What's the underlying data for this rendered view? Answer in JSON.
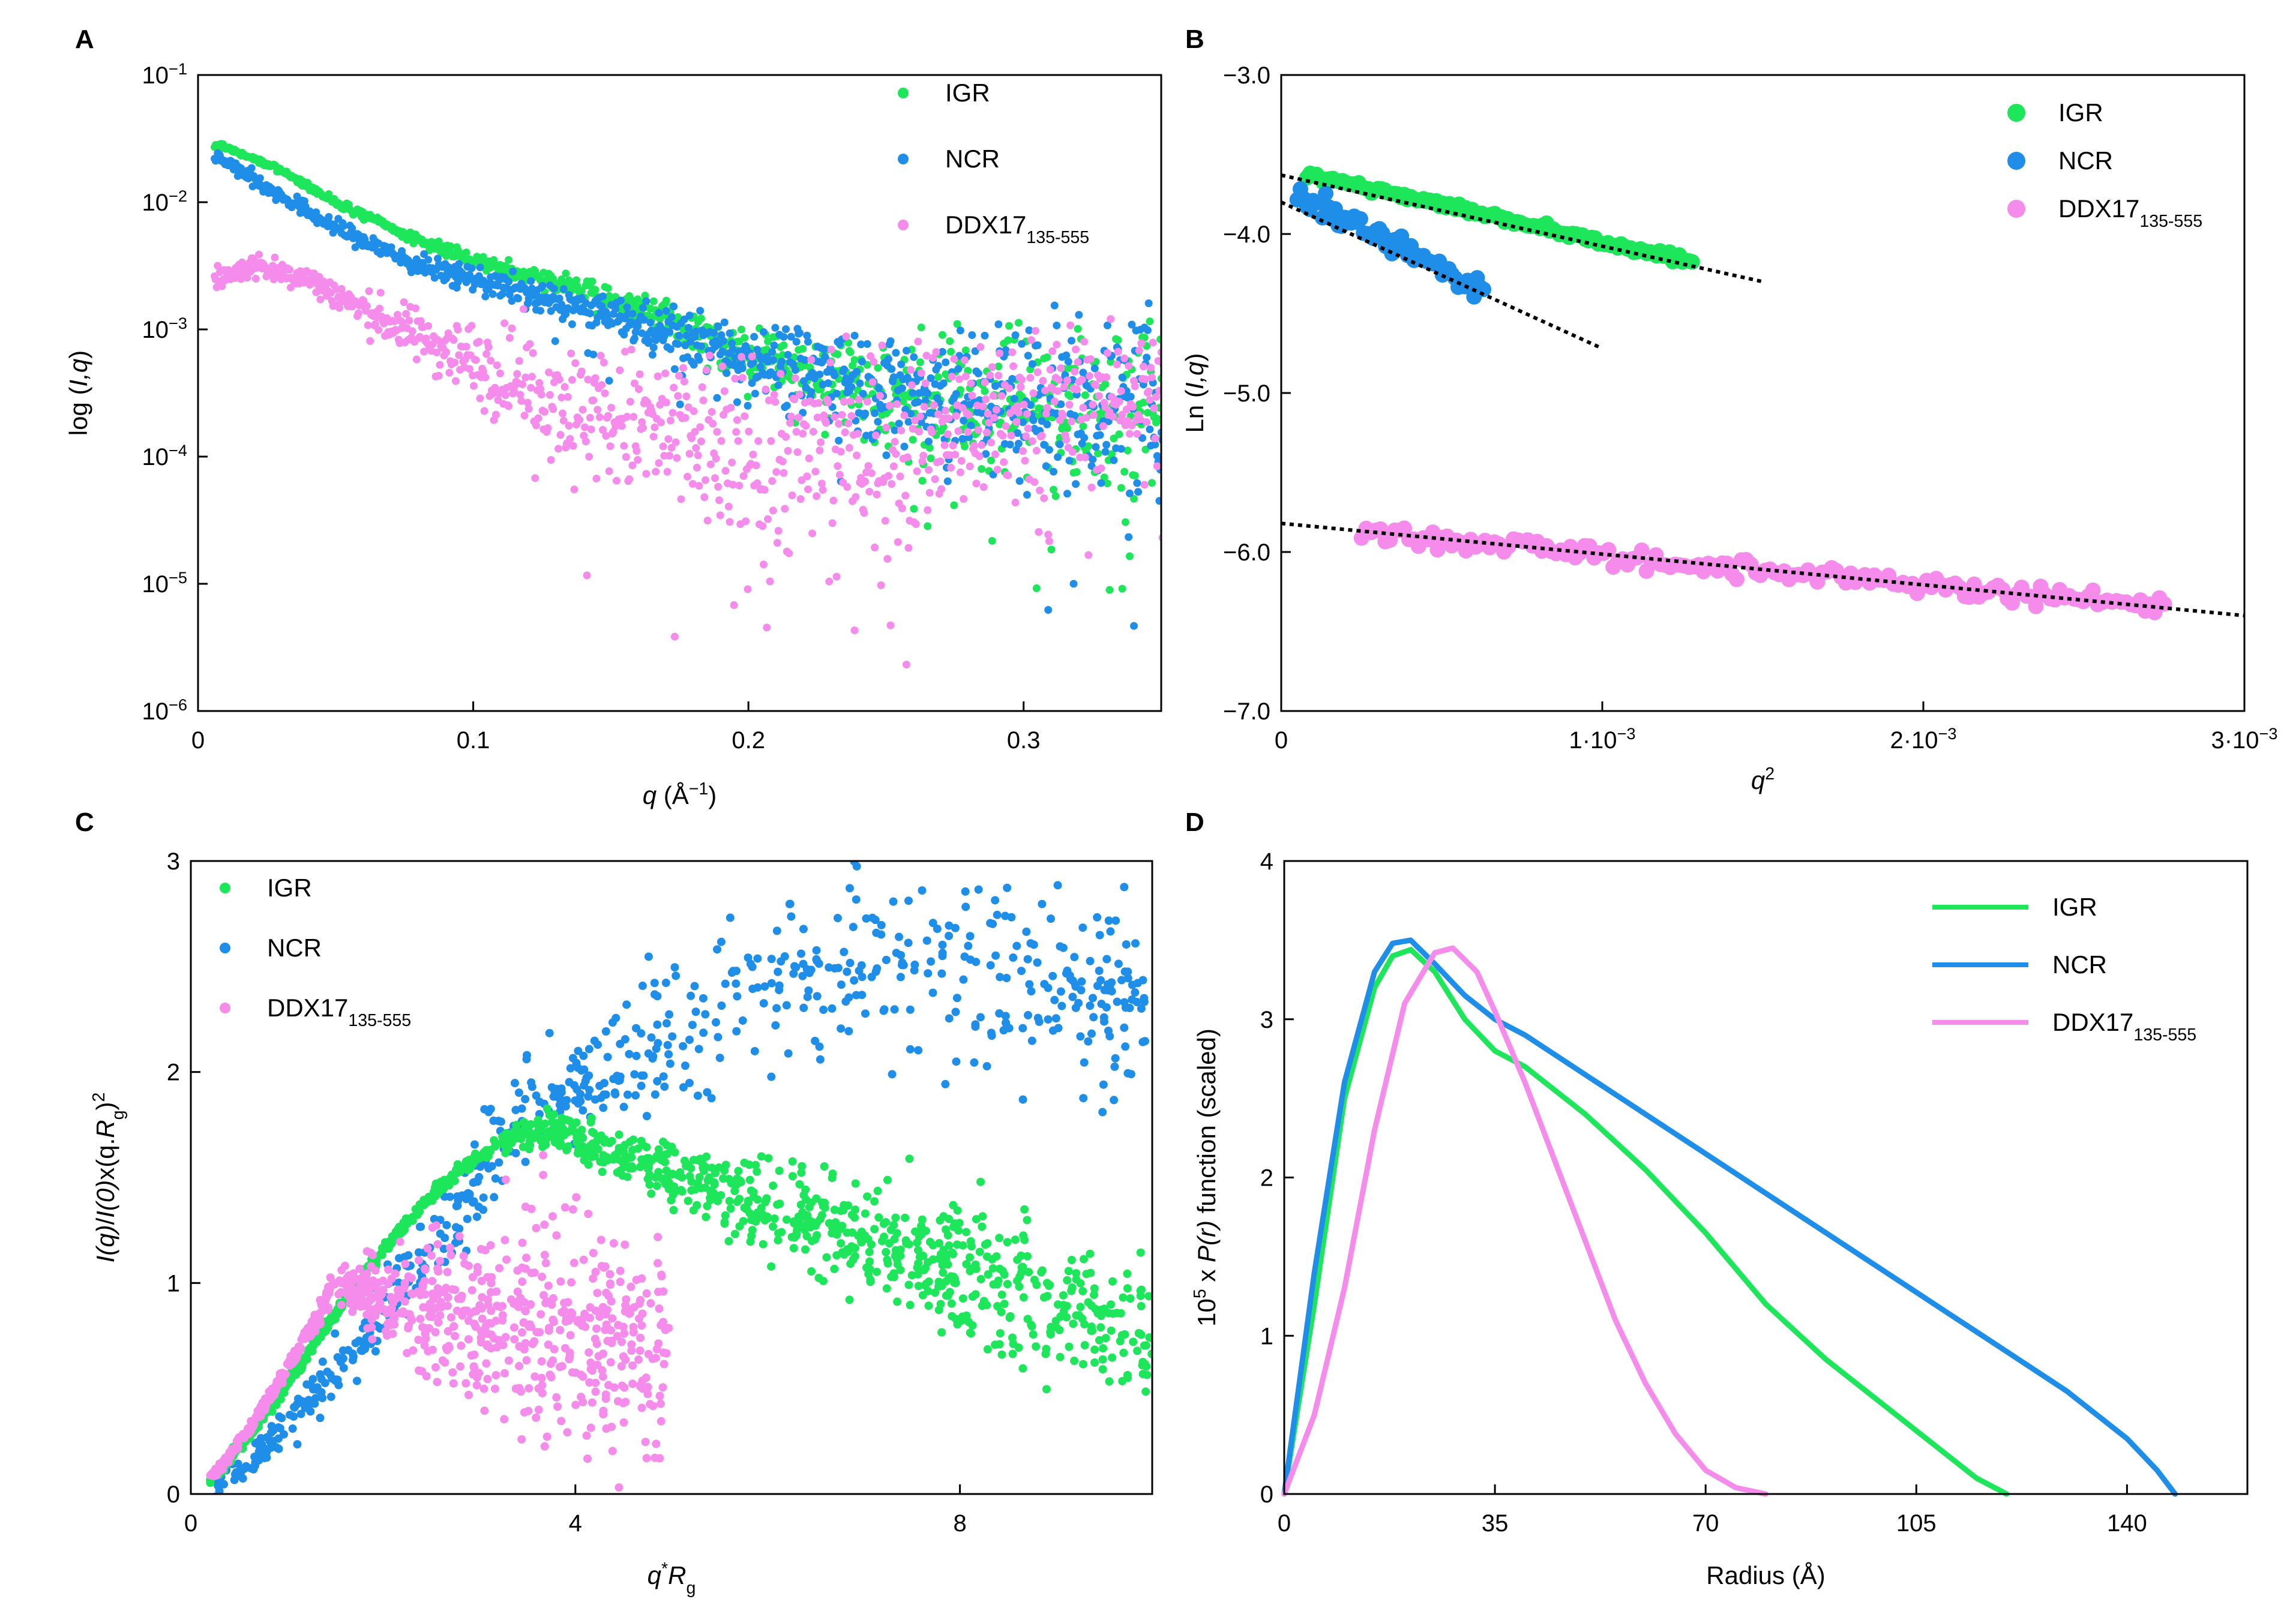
{
  "figure": {
    "series_colors": {
      "IGR": "#1ee65a",
      "NCR": "#1e8ee8",
      "DDX": "#f58cec"
    }
  },
  "chart_data": [
    {
      "panel": "A",
      "type": "scatter",
      "xlabel_var": "q",
      "xlabel_unit": " (Å",
      "xlabel_exp": "−1",
      "xlabel_close": ")",
      "ylabel_pre": "log (",
      "ylabel_var": "I,q",
      "ylabel_post": ")",
      "xlim": [
        0,
        0.35
      ],
      "ylim_log10": [
        -6,
        -1
      ],
      "yscale": "log",
      "x_ticks": [
        0,
        0.1,
        0.2,
        0.3
      ],
      "x_tick_labels": [
        "0",
        "0.1",
        "0.2",
        "0.3"
      ],
      "y_ticks_exp": [
        -1,
        -2,
        -3,
        -4,
        -5,
        -6
      ],
      "y_tick_base": "10",
      "y_tick_exps": [
        "−1",
        "−2",
        "−3",
        "−4",
        "−5",
        "−6"
      ],
      "legend": [
        {
          "label": "IGR",
          "sub": "",
          "color": "#1ee65a"
        },
        {
          "label": "NCR",
          "sub": "",
          "color": "#1e8ee8"
        },
        {
          "label": "DDX17",
          "sub": "135-555",
          "color": "#f58cec"
        }
      ],
      "series": [
        {
          "name": "IGR",
          "color": "#1ee65a",
          "q": [
            0.008,
            0.03,
            0.05,
            0.08,
            0.1,
            0.15,
            0.2,
            0.25,
            0.3,
            0.35
          ],
          "log10_I": [
            -1.55,
            -1.75,
            -2.0,
            -2.3,
            -2.45,
            -2.75,
            -3.2,
            -3.5,
            -3.6,
            -3.6
          ],
          "scatter_log10": [
            0.02,
            0.02,
            0.03,
            0.04,
            0.05,
            0.1,
            0.2,
            0.4,
            0.6,
            0.7
          ]
        },
        {
          "name": "NCR",
          "color": "#1e8ee8",
          "q": [
            0.008,
            0.03,
            0.05,
            0.08,
            0.1,
            0.15,
            0.2,
            0.25,
            0.3,
            0.35
          ],
          "log10_I": [
            -1.65,
            -1.95,
            -2.2,
            -2.5,
            -2.6,
            -2.9,
            -3.2,
            -3.45,
            -3.55,
            -3.6
          ],
          "scatter_log10": [
            0.05,
            0.06,
            0.07,
            0.08,
            0.1,
            0.15,
            0.25,
            0.45,
            0.6,
            0.7
          ]
        },
        {
          "name": "DDX17",
          "color": "#f58cec",
          "q": [
            0.008,
            0.02,
            0.04,
            0.06,
            0.08,
            0.1,
            0.15,
            0.2,
            0.25,
            0.3,
            0.35
          ],
          "log10_I": [
            -2.6,
            -2.5,
            -2.6,
            -2.85,
            -3.05,
            -3.25,
            -3.7,
            -4.0,
            -3.9,
            -3.6,
            -3.5
          ],
          "scatter_log10": [
            0.1,
            0.1,
            0.1,
            0.15,
            0.2,
            0.3,
            0.55,
            0.8,
            0.8,
            0.6,
            0.5
          ]
        }
      ]
    },
    {
      "panel": "B",
      "type": "scatter",
      "xlabel_var": "q",
      "xlabel_exp": "2",
      "ylabel_pre": "Ln (",
      "ylabel_var": "I,q",
      "ylabel_post": ")",
      "xlim": [
        0,
        0.003
      ],
      "ylim": [
        -7.0,
        -3.0
      ],
      "x_ticks": [
        0,
        0.001,
        0.002,
        0.003
      ],
      "x_tick_labels": [
        "0",
        "1·10",
        "2·10",
        "3·10"
      ],
      "x_tick_exps": [
        "",
        "−3",
        "−3",
        "−3"
      ],
      "y_ticks": [
        -3.0,
        -4.0,
        -5.0,
        -6.0,
        -7.0
      ],
      "y_tick_labels": [
        "−3.0",
        "−4.0",
        "−5.0",
        "−6.0",
        "−7.0"
      ],
      "legend": [
        {
          "label": "IGR",
          "sub": "",
          "color": "#1ee65a"
        },
        {
          "label": "NCR",
          "sub": "",
          "color": "#1e8ee8"
        },
        {
          "label": "DDX17",
          "sub": "135-555",
          "color": "#f58cec"
        }
      ],
      "series": [
        {
          "name": "IGR",
          "color": "#1ee65a",
          "x_range": [
            8e-05,
            0.00128
          ],
          "y_start": -3.62,
          "y_end": -4.18,
          "noise": 0.025
        },
        {
          "name": "NCR",
          "color": "#1e8ee8",
          "x_range": [
            5e-05,
            0.00063
          ],
          "y_start": -3.75,
          "y_end": -4.35,
          "noise": 0.07
        },
        {
          "name": "DDX17",
          "color": "#f58cec",
          "x_range": [
            0.00025,
            0.00275
          ],
          "y_start": -5.88,
          "y_end": -6.35,
          "noise": 0.06
        }
      ],
      "fit_lines": [
        {
          "series": "IGR",
          "x": [
            0.0,
            0.0015
          ],
          "y": [
            -3.63,
            -4.3
          ]
        },
        {
          "series": "NCR",
          "x": [
            0.0,
            0.001
          ],
          "y": [
            -3.8,
            -4.72
          ]
        },
        {
          "series": "DDX17",
          "x": [
            0.0,
            0.003
          ],
          "y": [
            -5.82,
            -6.4
          ]
        }
      ]
    },
    {
      "panel": "C",
      "type": "scatter",
      "xlabel_var": "q",
      "xlabel_star": "*",
      "xlabel_var2": "R",
      "xlabel_sub": "g",
      "ylabel_parts": [
        "I(q)",
        "/",
        "I(0)",
        "x(q.",
        "R",
        "g",
        ")",
        "2"
      ],
      "xlim": [
        0,
        10
      ],
      "ylim": [
        0,
        3
      ],
      "x_ticks": [
        0,
        4,
        8
      ],
      "x_tick_labels": [
        "0",
        "4",
        "8"
      ],
      "y_ticks": [
        0,
        1,
        2,
        3
      ],
      "y_tick_labels": [
        "0",
        "1",
        "2",
        "3"
      ],
      "legend": [
        {
          "label": "IGR",
          "sub": "",
          "color": "#1ee65a"
        },
        {
          "label": "NCR",
          "sub": "",
          "color": "#1e8ee8"
        },
        {
          "label": "DDX17",
          "sub": "135-555",
          "color": "#f58cec"
        }
      ],
      "series": [
        {
          "name": "IGR",
          "color": "#1ee65a",
          "x_range": [
            0.2,
            10
          ],
          "peak": 1.72,
          "peak_x": 3.8
        },
        {
          "name": "NCR",
          "color": "#1e8ee8",
          "x_range": [
            0.2,
            10
          ],
          "peak": 2.45,
          "peak_x": 6.5
        },
        {
          "name": "DDX17",
          "color": "#f58cec",
          "x_range": [
            0.2,
            5
          ],
          "peak": 1.1,
          "peak_x": 2.0
        }
      ]
    },
    {
      "panel": "D",
      "type": "line",
      "xlabel": "Radius (Å)",
      "ylabel_pre": "10",
      "ylabel_exp": "5",
      "ylabel_mid": " x ",
      "ylabel_var": "P(r)",
      "ylabel_post": " function (scaled)",
      "xlim": [
        0,
        160
      ],
      "ylim": [
        0,
        4
      ],
      "x_ticks": [
        0,
        35,
        70,
        105,
        140
      ],
      "x_tick_labels": [
        "0",
        "35",
        "70",
        "105",
        "140"
      ],
      "y_ticks": [
        0,
        1,
        2,
        3,
        4
      ],
      "y_tick_labels": [
        "0",
        "1",
        "2",
        "3",
        "4"
      ],
      "legend": [
        {
          "label": "IGR",
          "sub": "",
          "color": "#1ee65a"
        },
        {
          "label": "NCR",
          "sub": "",
          "color": "#1e8ee8"
        },
        {
          "label": "DDX17",
          "sub": "135-555",
          "color": "#f58cec"
        }
      ],
      "series": [
        {
          "name": "IGR",
          "color": "#1ee65a",
          "x": [
            0,
            5,
            10,
            15,
            18,
            21,
            25,
            30,
            35,
            40,
            45,
            50,
            60,
            70,
            80,
            90,
            100,
            110,
            115,
            120
          ],
          "y": [
            0,
            1.2,
            2.5,
            3.2,
            3.4,
            3.44,
            3.3,
            3.0,
            2.8,
            2.7,
            2.55,
            2.4,
            2.05,
            1.65,
            1.2,
            0.85,
            0.55,
            0.25,
            0.1,
            0
          ]
        },
        {
          "name": "NCR",
          "color": "#1e8ee8",
          "x": [
            0,
            5,
            10,
            15,
            18,
            21,
            25,
            30,
            35,
            40,
            50,
            60,
            70,
            80,
            90,
            100,
            110,
            120,
            130,
            140,
            145,
            148
          ],
          "y": [
            0,
            1.4,
            2.6,
            3.3,
            3.48,
            3.5,
            3.35,
            3.15,
            3.0,
            2.9,
            2.65,
            2.4,
            2.15,
            1.9,
            1.65,
            1.4,
            1.15,
            0.9,
            0.65,
            0.35,
            0.15,
            0
          ]
        },
        {
          "name": "DDX17",
          "color": "#f58cec",
          "x": [
            0,
            5,
            10,
            15,
            20,
            25,
            28,
            32,
            35,
            40,
            45,
            50,
            55,
            60,
            65,
            70,
            75,
            80
          ],
          "y": [
            0,
            0.5,
            1.3,
            2.3,
            3.1,
            3.42,
            3.45,
            3.3,
            3.05,
            2.6,
            2.1,
            1.6,
            1.1,
            0.7,
            0.38,
            0.15,
            0.04,
            0
          ]
        }
      ]
    }
  ]
}
